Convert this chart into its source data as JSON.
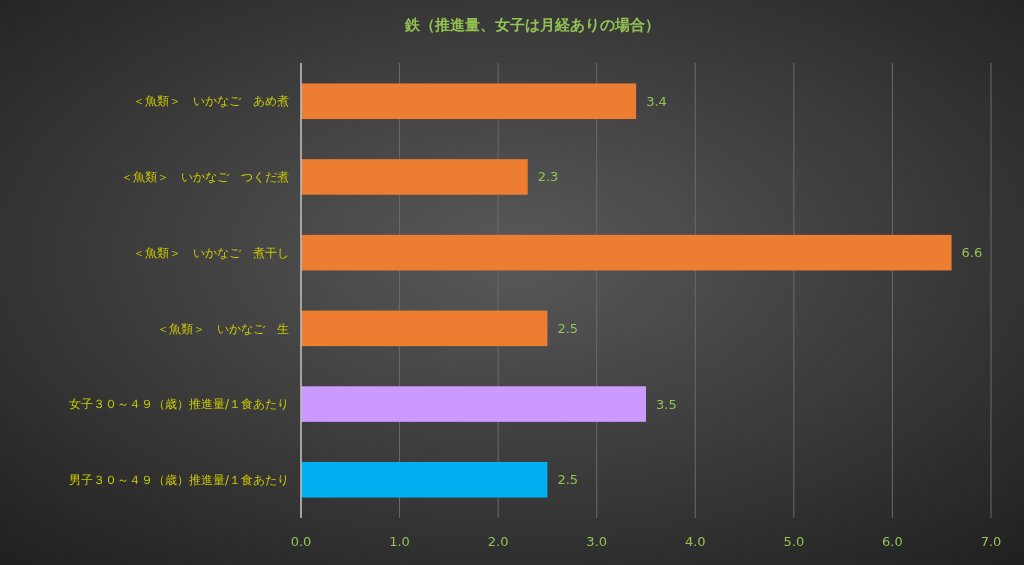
{
  "chart_data": {
    "type": "bar",
    "orientation": "horizontal",
    "title": "鉄（推進量、女子は月経ありの場合）",
    "categories": [
      "＜魚類＞　いかなご　あめ煮",
      "＜魚類＞　いかなご　つくだ煮",
      "＜魚類＞　いかなご　煮干し",
      "＜魚類＞　いかなご　生",
      "女子３０～４９（歳）推進量/１食あたり",
      "男子３０～４９（歳）推進量/１食あたり"
    ],
    "values": [
      3.4,
      2.3,
      6.6,
      2.5,
      3.5,
      2.5
    ],
    "colors": [
      "#ed7d31",
      "#ed7d31",
      "#ed7d31",
      "#ed7d31",
      "#cc99ff",
      "#00b0f0"
    ],
    "xlim": [
      0,
      7
    ],
    "xticks": [
      {
        "value": 0,
        "label": "0.0"
      },
      {
        "value": 1,
        "label": "1.0"
      },
      {
        "value": 2,
        "label": "2.0"
      },
      {
        "value": 3,
        "label": "3.0"
      },
      {
        "value": 4,
        "label": "4.0"
      },
      {
        "value": 5,
        "label": "5.0"
      },
      {
        "value": 6,
        "label": "6.0"
      },
      {
        "value": 7,
        "label": "7.0"
      }
    ],
    "grid": "x",
    "data_labels": true
  }
}
